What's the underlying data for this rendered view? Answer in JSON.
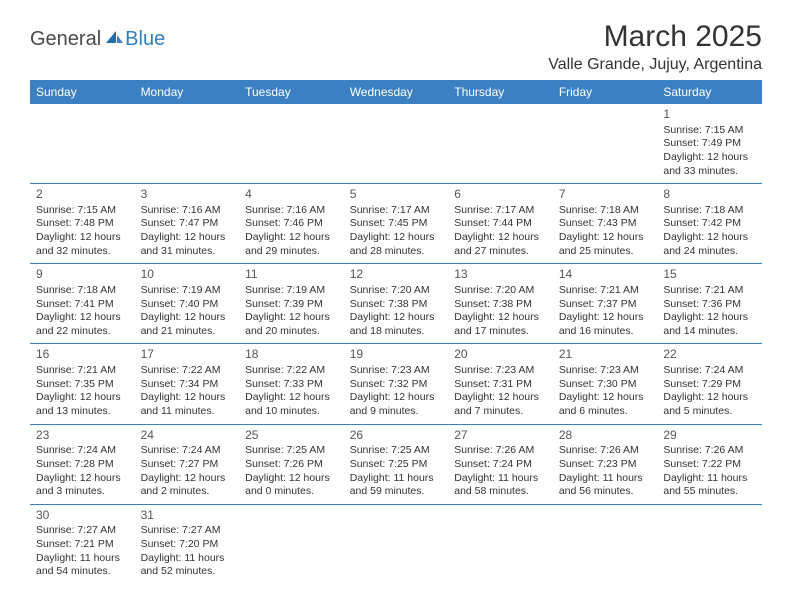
{
  "brand": {
    "part1": "General",
    "part2": "Blue"
  },
  "title": "March 2025",
  "location": "Valle Grande, Jujuy, Argentina",
  "theme": {
    "header_bg": "#3a80c3",
    "header_text": "#ffffff",
    "cell_border": "#3a80c3",
    "text_color": "#333333",
    "logo_gray": "#5a5a5a",
    "logo_blue": "#2f7fbf"
  },
  "days_of_week": [
    "Sunday",
    "Monday",
    "Tuesday",
    "Wednesday",
    "Thursday",
    "Friday",
    "Saturday"
  ],
  "weeks": [
    [
      null,
      null,
      null,
      null,
      null,
      null,
      {
        "n": "1",
        "sunrise": "7:15 AM",
        "sunset": "7:49 PM",
        "daylight": "12 hours and 33 minutes."
      }
    ],
    [
      {
        "n": "2",
        "sunrise": "7:15 AM",
        "sunset": "7:48 PM",
        "daylight": "12 hours and 32 minutes."
      },
      {
        "n": "3",
        "sunrise": "7:16 AM",
        "sunset": "7:47 PM",
        "daylight": "12 hours and 31 minutes."
      },
      {
        "n": "4",
        "sunrise": "7:16 AM",
        "sunset": "7:46 PM",
        "daylight": "12 hours and 29 minutes."
      },
      {
        "n": "5",
        "sunrise": "7:17 AM",
        "sunset": "7:45 PM",
        "daylight": "12 hours and 28 minutes."
      },
      {
        "n": "6",
        "sunrise": "7:17 AM",
        "sunset": "7:44 PM",
        "daylight": "12 hours and 27 minutes."
      },
      {
        "n": "7",
        "sunrise": "7:18 AM",
        "sunset": "7:43 PM",
        "daylight": "12 hours and 25 minutes."
      },
      {
        "n": "8",
        "sunrise": "7:18 AM",
        "sunset": "7:42 PM",
        "daylight": "12 hours and 24 minutes."
      }
    ],
    [
      {
        "n": "9",
        "sunrise": "7:18 AM",
        "sunset": "7:41 PM",
        "daylight": "12 hours and 22 minutes."
      },
      {
        "n": "10",
        "sunrise": "7:19 AM",
        "sunset": "7:40 PM",
        "daylight": "12 hours and 21 minutes."
      },
      {
        "n": "11",
        "sunrise": "7:19 AM",
        "sunset": "7:39 PM",
        "daylight": "12 hours and 20 minutes."
      },
      {
        "n": "12",
        "sunrise": "7:20 AM",
        "sunset": "7:38 PM",
        "daylight": "12 hours and 18 minutes."
      },
      {
        "n": "13",
        "sunrise": "7:20 AM",
        "sunset": "7:38 PM",
        "daylight": "12 hours and 17 minutes."
      },
      {
        "n": "14",
        "sunrise": "7:21 AM",
        "sunset": "7:37 PM",
        "daylight": "12 hours and 16 minutes."
      },
      {
        "n": "15",
        "sunrise": "7:21 AM",
        "sunset": "7:36 PM",
        "daylight": "12 hours and 14 minutes."
      }
    ],
    [
      {
        "n": "16",
        "sunrise": "7:21 AM",
        "sunset": "7:35 PM",
        "daylight": "12 hours and 13 minutes."
      },
      {
        "n": "17",
        "sunrise": "7:22 AM",
        "sunset": "7:34 PM",
        "daylight": "12 hours and 11 minutes."
      },
      {
        "n": "18",
        "sunrise": "7:22 AM",
        "sunset": "7:33 PM",
        "daylight": "12 hours and 10 minutes."
      },
      {
        "n": "19",
        "sunrise": "7:23 AM",
        "sunset": "7:32 PM",
        "daylight": "12 hours and 9 minutes."
      },
      {
        "n": "20",
        "sunrise": "7:23 AM",
        "sunset": "7:31 PM",
        "daylight": "12 hours and 7 minutes."
      },
      {
        "n": "21",
        "sunrise": "7:23 AM",
        "sunset": "7:30 PM",
        "daylight": "12 hours and 6 minutes."
      },
      {
        "n": "22",
        "sunrise": "7:24 AM",
        "sunset": "7:29 PM",
        "daylight": "12 hours and 5 minutes."
      }
    ],
    [
      {
        "n": "23",
        "sunrise": "7:24 AM",
        "sunset": "7:28 PM",
        "daylight": "12 hours and 3 minutes."
      },
      {
        "n": "24",
        "sunrise": "7:24 AM",
        "sunset": "7:27 PM",
        "daylight": "12 hours and 2 minutes."
      },
      {
        "n": "25",
        "sunrise": "7:25 AM",
        "sunset": "7:26 PM",
        "daylight": "12 hours and 0 minutes."
      },
      {
        "n": "26",
        "sunrise": "7:25 AM",
        "sunset": "7:25 PM",
        "daylight": "11 hours and 59 minutes."
      },
      {
        "n": "27",
        "sunrise": "7:26 AM",
        "sunset": "7:24 PM",
        "daylight": "11 hours and 58 minutes."
      },
      {
        "n": "28",
        "sunrise": "7:26 AM",
        "sunset": "7:23 PM",
        "daylight": "11 hours and 56 minutes."
      },
      {
        "n": "29",
        "sunrise": "7:26 AM",
        "sunset": "7:22 PM",
        "daylight": "11 hours and 55 minutes."
      }
    ],
    [
      {
        "n": "30",
        "sunrise": "7:27 AM",
        "sunset": "7:21 PM",
        "daylight": "11 hours and 54 minutes."
      },
      {
        "n": "31",
        "sunrise": "7:27 AM",
        "sunset": "7:20 PM",
        "daylight": "11 hours and 52 minutes."
      },
      null,
      null,
      null,
      null,
      null
    ]
  ],
  "labels": {
    "sunrise": "Sunrise:",
    "sunset": "Sunset:",
    "daylight": "Daylight:"
  }
}
